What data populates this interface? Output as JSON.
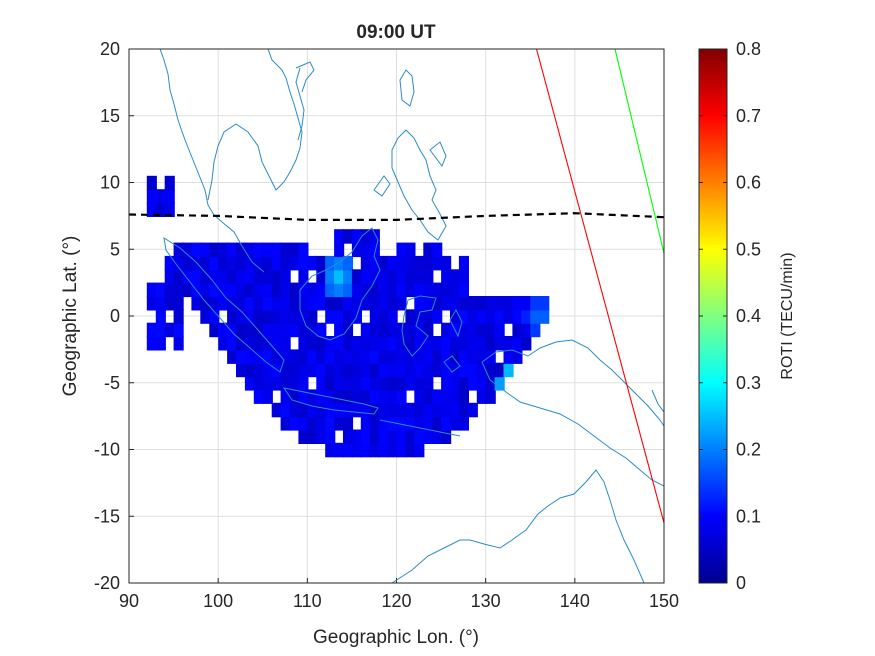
{
  "chart_data": {
    "type": "heatmap",
    "title": "09:00 UT",
    "xlabel": "Geographic Lon. (°)",
    "ylabel": "Geographic Lat. (°)",
    "xlim": [
      90,
      150
    ],
    "ylim": [
      -20,
      20
    ],
    "xticks": [
      "90",
      "100",
      "110",
      "120",
      "130",
      "140",
      "150"
    ],
    "yticks": [
      "20",
      "15",
      "10",
      "5",
      "0",
      "-5",
      "-10",
      "-15",
      "-20"
    ],
    "grid": true,
    "colorbar": {
      "label": "ROTI (TECU/min)",
      "range": [
        0,
        0.8
      ],
      "ticks": [
        "0",
        "0.1",
        "0.2",
        "0.3",
        "0.4",
        "0.5",
        "0.6",
        "0.7",
        "0.8"
      ],
      "colormap": "jet"
    },
    "roti_level": {
      "background": 0.08,
      "hotspots": [
        {
          "lon": 113.5,
          "lat": 3.0,
          "value": 0.25
        },
        {
          "lon": 133.0,
          "lat": -5.0,
          "value": 0.3
        },
        {
          "lon": 136.0,
          "lat": 0.0,
          "value": 0.2
        }
      ]
    },
    "lines": [
      {
        "style": "dashed",
        "color": "#000000",
        "x": [
          90,
          100,
          110,
          120,
          130,
          140,
          150
        ],
        "y": [
          7.6,
          7.5,
          7.2,
          7.2,
          7.5,
          7.7,
          7.4
        ]
      },
      {
        "style": "solid",
        "color": "#ff0000",
        "x": [
          135.7,
          150
        ],
        "y": [
          20,
          -15.5
        ]
      },
      {
        "style": "solid",
        "color": "#00ff00",
        "x": [
          144.5,
          150
        ],
        "y": [
          20,
          4.7
        ]
      }
    ],
    "coastline_color": "#2b8bc9"
  }
}
